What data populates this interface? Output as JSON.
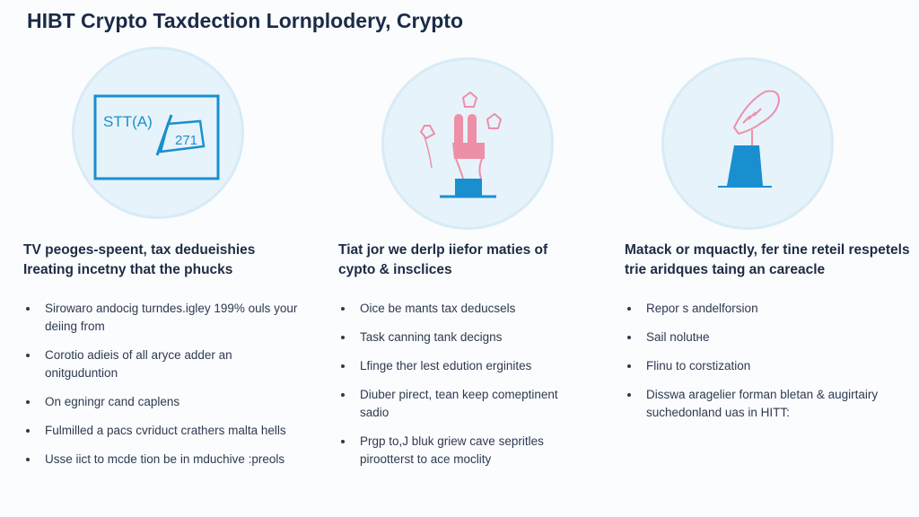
{
  "title": "HIBT Crypto Taxdection Lornplodery, Crypto",
  "columns": [
    {
      "icon": "tax-form-icon",
      "icon_text_1": "STT(A)",
      "icon_text_2": "271",
      "heading": "TV peoges-speent, tax deduеishies Ireating incetny that the phucks",
      "bullets": [
        "Sirowaro andocig turndes.igley 199% ouls your deiing from",
        "Corotio adieis of all aryce adder an onitguduntion",
        "On egningr cand caplens",
        "Fulmilled a pacs cvriduct crathers malta hells",
        "Usse iict to mcde tion be in mduchive :preols"
      ]
    },
    {
      "icon": "victory-hand-icon",
      "heading": "Tiat jor we derlp iiefor maties of cypto & insclices",
      "bullets": [
        "Oice be mants tax deducsels",
        "Task canning tank decigns",
        "Lfinge ther lest edution erginites",
        "Diuber pirect, tean keep comeptinent sadio",
        "Prgp to,J bluk griew cave sepritles pirootterst to ace moclity"
      ]
    },
    {
      "icon": "ballot-box-hand-icon",
      "heading": "Matack or mquactly, fer tine reteil respetels trie aridques taing an careacle",
      "bullets": [
        "Repor s andelforsion",
        "Sail nolutне",
        "Flinu to corstization",
        "Disswa aragelier forman bletan & augirtairy suchedonland uas in HITT:"
      ]
    }
  ],
  "colors": {
    "accent": "#1a8fd0",
    "pink": "#ee8fa8",
    "circle": "#e6f3fa",
    "text": "#1d2b45"
  }
}
